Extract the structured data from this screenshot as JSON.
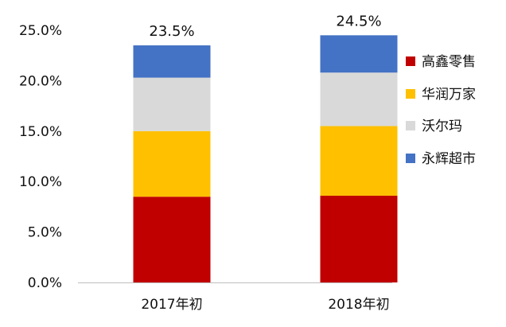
{
  "chart_data": {
    "type": "bar",
    "stacked": true,
    "categories": [
      "2017年初",
      "2018年初"
    ],
    "series": [
      {
        "name": "高鑫零售",
        "values": [
          8.5,
          8.6
        ],
        "color": "#c00000"
      },
      {
        "name": "华润万家",
        "values": [
          6.5,
          6.9
        ],
        "color": "#ffc000"
      },
      {
        "name": "沃尔玛",
        "values": [
          5.3,
          5.3
        ],
        "color": "#d9d9d9"
      },
      {
        "name": "永辉超市",
        "values": [
          3.2,
          3.7
        ],
        "color": "#4472c4"
      }
    ],
    "totals": [
      "23.5%",
      "24.5%"
    ],
    "yticks": [
      "0.0%",
      "5.0%",
      "10.0%",
      "15.0%",
      "20.0%",
      "25.0%"
    ],
    "ytick_values": [
      0,
      5,
      10,
      15,
      20,
      25
    ],
    "ylim": [
      0,
      25
    ],
    "grid": false,
    "legend_position": "right",
    "title": "",
    "xlabel": "",
    "ylabel": ""
  }
}
